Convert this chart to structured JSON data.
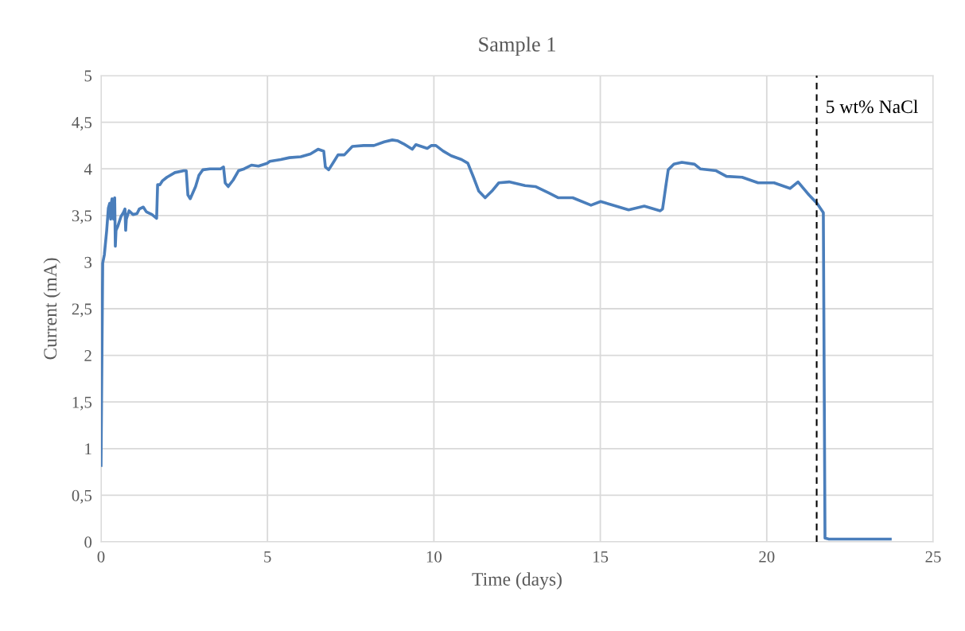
{
  "chart_data": {
    "type": "line",
    "title": "Sample 1",
    "xlabel": "Time (days)",
    "ylabel": "Current (mA)",
    "xlim": [
      0,
      25
    ],
    "xticks": [
      0,
      5,
      10,
      15,
      20,
      25
    ],
    "ylim": [
      0,
      5
    ],
    "yticks": [
      0,
      {
        "value": 0.5,
        "label": "0,5"
      },
      1,
      {
        "value": 1.5,
        "label": "1,5"
      },
      2,
      {
        "value": 2.5,
        "label": "2,5"
      },
      3,
      {
        "value": 3.5,
        "label": "3,5"
      },
      4,
      {
        "value": 4.5,
        "label": "4,5"
      },
      5
    ],
    "grid": true,
    "marker": "none",
    "line_style": "solid",
    "ref_lines": [
      {
        "axis": "x",
        "value": 21.5,
        "label": "5 wt% NaCl",
        "color": "#000000",
        "line_style": "dashed"
      }
    ],
    "series": [
      {
        "color": "#4a7ebb",
        "x": [
          0,
          0.05,
          0.1,
          0.17,
          0.22,
          0.26,
          0.29,
          0.31,
          0.33,
          0.38,
          0.41,
          0.43,
          0.45,
          0.5,
          0.6,
          0.67,
          0.72,
          0.74,
          0.76,
          0.84,
          0.96,
          1.08,
          1.15,
          1.27,
          1.36,
          1.53,
          1.67,
          1.7,
          1.77,
          1.84,
          1.98,
          2.22,
          2.49,
          2.56,
          2.61,
          2.68,
          2.84,
          2.94,
          3.06,
          3.27,
          3.59,
          3.68,
          3.73,
          3.82,
          3.97,
          4.13,
          4.3,
          4.52,
          4.73,
          4.99,
          5.07,
          5.4,
          5.66,
          6.0,
          6.29,
          6.52,
          6.69,
          6.74,
          6.84,
          7.0,
          7.12,
          7.31,
          7.55,
          7.89,
          8.2,
          8.51,
          8.75,
          8.92,
          9.08,
          9.35,
          9.46,
          9.8,
          9.92,
          10.06,
          10.28,
          10.52,
          10.83,
          11.02,
          11.19,
          11.35,
          11.54,
          11.74,
          11.95,
          12.26,
          12.74,
          13.05,
          13.46,
          13.74,
          14.17,
          14.72,
          15.01,
          15.85,
          16.32,
          16.8,
          16.87,
          16.97,
          17.04,
          17.21,
          17.45,
          17.83,
          18.0,
          18.48,
          18.79,
          19.26,
          19.74,
          20.22,
          20.7,
          20.94,
          21.27,
          21.51,
          21.7,
          21.75,
          21.87,
          23.71
        ],
        "values": [
          0.82,
          2.99,
          3.08,
          3.34,
          3.58,
          3.63,
          3.46,
          3.63,
          3.68,
          3.46,
          3.69,
          3.17,
          3.34,
          3.38,
          3.49,
          3.53,
          3.57,
          3.34,
          3.46,
          3.55,
          3.51,
          3.52,
          3.57,
          3.59,
          3.54,
          3.51,
          3.47,
          3.83,
          3.83,
          3.87,
          3.91,
          3.96,
          3.98,
          3.98,
          3.72,
          3.68,
          3.81,
          3.93,
          3.99,
          4.0,
          4.0,
          4.02,
          3.85,
          3.81,
          3.88,
          3.98,
          4.0,
          4.04,
          4.03,
          4.06,
          4.08,
          4.1,
          4.12,
          4.13,
          4.16,
          4.21,
          4.19,
          4.02,
          3.99,
          4.08,
          4.15,
          4.15,
          4.24,
          4.25,
          4.25,
          4.29,
          4.31,
          4.3,
          4.27,
          4.21,
          4.26,
          4.22,
          4.25,
          4.25,
          4.19,
          4.14,
          4.1,
          4.06,
          3.91,
          3.76,
          3.69,
          3.76,
          3.85,
          3.86,
          3.82,
          3.81,
          3.74,
          3.69,
          3.69,
          3.61,
          3.65,
          3.56,
          3.6,
          3.55,
          3.57,
          3.82,
          3.99,
          4.05,
          4.07,
          4.05,
          4.0,
          3.98,
          3.92,
          3.91,
          3.85,
          3.85,
          3.79,
          3.86,
          3.72,
          3.63,
          3.53,
          0.04,
          0.03,
          0.03
        ]
      }
    ]
  }
}
